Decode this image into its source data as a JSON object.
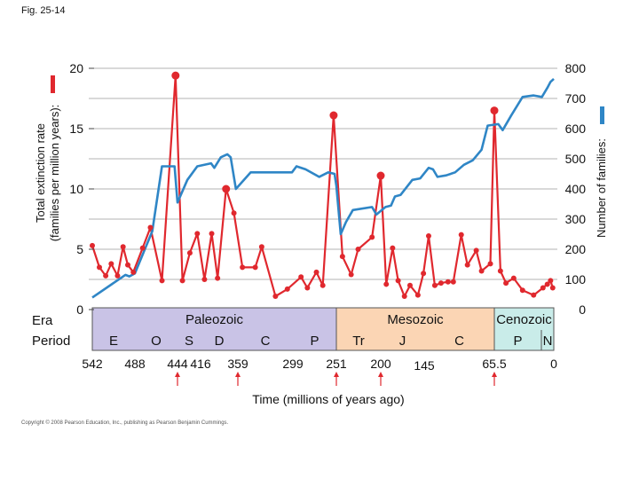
{
  "figure_label": "Fig. 25-14",
  "copyright": "Copyright © 2008 Pearson Education, Inc., publishing as Pearson Benjamin Cummings.",
  "chart_data": {
    "type": "line",
    "title": "",
    "xlabel": "Time (millions of years ago)",
    "y_left_label_line1": "Total extinction rate",
    "y_left_label_line2": "(families per million years):",
    "y_right_label": "Number of families:",
    "y_left_ticks": [
      "0",
      "5",
      "10",
      "15",
      "20"
    ],
    "y_left_ylim": [
      0,
      20
    ],
    "y_right_ticks": [
      "0",
      "100",
      "200",
      "300",
      "400",
      "500",
      "600",
      "700",
      "800"
    ],
    "y_right_ylim": [
      0,
      800
    ],
    "colors": {
      "extinction": "#e0282e",
      "families": "#2f86c6",
      "paleozoic": "#c9c3e6",
      "mesozoic": "#fbd5b4",
      "cenozoic": "#c9ece9"
    },
    "row_labels": {
      "era": "Era",
      "period": "Period"
    },
    "eras": [
      {
        "name": "Paleozoic",
        "start": 542,
        "end": 251
      },
      {
        "name": "Mesozoic",
        "start": 251,
        "end": 65.5
      },
      {
        "name": "Cenozoic",
        "start": 65.5,
        "end": 0
      }
    ],
    "periods": [
      {
        "name": "E",
        "start": 542,
        "end": 488
      },
      {
        "name": "O",
        "start": 488,
        "end": 444
      },
      {
        "name": "S",
        "start": 444,
        "end": 416
      },
      {
        "name": "D",
        "start": 416,
        "end": 359
      },
      {
        "name": "C",
        "start": 359,
        "end": 299
      },
      {
        "name": "P",
        "start": 299,
        "end": 251
      },
      {
        "name": "Tr",
        "start": 251,
        "end": 200
      },
      {
        "name": "J",
        "start": 200,
        "end": 145
      },
      {
        "name": "C",
        "start": 145,
        "end": 65.5
      },
      {
        "name": "P",
        "start": 65.5,
        "end": 23
      },
      {
        "name": "N",
        "start": 23,
        "end": 0
      }
    ],
    "time_ticks": [
      "542",
      "488",
      "444",
      "416",
      "359",
      "299",
      "251",
      "200",
      "145",
      "65.5",
      "0"
    ],
    "mass_extinction_arrows": [
      444,
      359,
      251,
      200,
      65.5
    ],
    "series": [
      {
        "key": "extinction",
        "axis": "left",
        "points": [
          [
            542,
            5.3
          ],
          [
            533,
            3.5
          ],
          [
            525,
            2.8
          ],
          [
            518,
            3.8
          ],
          [
            510,
            2.8
          ],
          [
            503,
            5.2
          ],
          [
            497,
            3.7
          ],
          [
            490,
            3.1
          ],
          [
            480,
            5.1
          ],
          [
            472,
            6.8
          ],
          [
            460,
            2.4
          ],
          [
            446,
            19.4
          ],
          [
            438,
            2.4
          ],
          [
            429,
            4.7
          ],
          [
            420,
            6.3
          ],
          [
            410,
            2.5
          ],
          [
            399,
            6.3
          ],
          [
            390,
            2.6
          ],
          [
            377,
            10.0
          ],
          [
            365,
            8.0
          ],
          [
            354,
            3.5
          ],
          [
            340,
            3.5
          ],
          [
            333,
            5.2
          ],
          [
            318,
            1.1
          ],
          [
            305,
            1.7
          ],
          [
            290,
            2.7
          ],
          [
            283,
            1.8
          ],
          [
            273,
            3.1
          ],
          [
            266,
            2.0
          ],
          [
            254,
            16.1
          ],
          [
            244,
            4.4
          ],
          [
            234,
            2.9
          ],
          [
            226,
            5.0
          ],
          [
            210,
            6.0
          ],
          [
            200,
            11.1
          ],
          [
            193,
            2.1
          ],
          [
            185,
            5.1
          ],
          [
            178,
            2.4
          ],
          [
            170,
            1.1
          ],
          [
            163,
            2.0
          ],
          [
            153,
            1.2
          ],
          [
            146,
            3.0
          ],
          [
            140,
            6.1
          ],
          [
            133,
            2.0
          ],
          [
            126,
            2.2
          ],
          [
            118,
            2.3
          ],
          [
            112,
            2.3
          ],
          [
            103,
            6.2
          ],
          [
            96,
            3.7
          ],
          [
            86,
            4.9
          ],
          [
            80,
            3.2
          ],
          [
            70,
            3.8
          ],
          [
            65.5,
            16.5
          ],
          [
            60,
            3.2
          ],
          [
            55,
            2.2
          ],
          [
            48,
            2.6
          ],
          [
            40,
            1.6
          ],
          [
            30,
            1.2
          ],
          [
            20,
            1.8
          ],
          [
            12,
            2.1
          ],
          [
            6,
            2.4
          ],
          [
            2,
            1.8
          ]
        ]
      },
      {
        "key": "families",
        "axis": "right",
        "points": [
          [
            542,
            40
          ],
          [
            500,
            115
          ],
          [
            495,
            110
          ],
          [
            488,
            120
          ],
          [
            470,
            260
          ],
          [
            460,
            475
          ],
          [
            447,
            475
          ],
          [
            444,
            355
          ],
          [
            432,
            430
          ],
          [
            420,
            475
          ],
          [
            400,
            485
          ],
          [
            395,
            470
          ],
          [
            385,
            505
          ],
          [
            375,
            515
          ],
          [
            370,
            505
          ],
          [
            362,
            400
          ],
          [
            345,
            455
          ],
          [
            320,
            455
          ],
          [
            300,
            455
          ],
          [
            295,
            475
          ],
          [
            285,
            465
          ],
          [
            270,
            440
          ],
          [
            260,
            455
          ],
          [
            253,
            450
          ],
          [
            251,
            410
          ],
          [
            246,
            250
          ],
          [
            240,
            290
          ],
          [
            232,
            330
          ],
          [
            210,
            340
          ],
          [
            205,
            315
          ],
          [
            194,
            340
          ],
          [
            187,
            345
          ],
          [
            182,
            375
          ],
          [
            175,
            380
          ],
          [
            160,
            430
          ],
          [
            150,
            435
          ],
          [
            140,
            470
          ],
          [
            135,
            465
          ],
          [
            130,
            440
          ],
          [
            120,
            445
          ],
          [
            110,
            455
          ],
          [
            100,
            480
          ],
          [
            90,
            495
          ],
          [
            80,
            530
          ],
          [
            73,
            610
          ],
          [
            62,
            615
          ],
          [
            58,
            595
          ],
          [
            50,
            645
          ],
          [
            40,
            705
          ],
          [
            30,
            710
          ],
          [
            22,
            705
          ],
          [
            12,
            735
          ],
          [
            6,
            755
          ],
          [
            0,
            765
          ]
        ]
      }
    ]
  }
}
